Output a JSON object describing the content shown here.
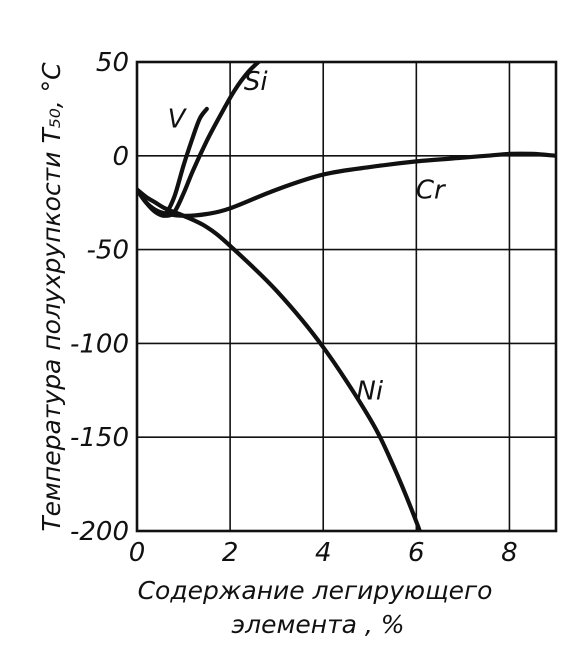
{
  "chart_data": {
    "type": "line",
    "xlabel_line1": "Содержание легирующего",
    "xlabel_line2": "элемента , %",
    "ylabel": "Температура полухрупкости T₅₀, °C",
    "xlim": [
      0,
      9
    ],
    "ylim": [
      -200,
      50
    ],
    "x_ticks": [
      0,
      2,
      4,
      6,
      8
    ],
    "x_tick_labels": [
      "0",
      "2",
      "4",
      "6",
      "8"
    ],
    "y_ticks": [
      50,
      0,
      -50,
      -100,
      -150,
      -200
    ],
    "y_tick_labels": [
      "50",
      "0",
      "-50",
      "-100",
      "-150",
      "-200"
    ],
    "grid": true,
    "series": [
      {
        "name": "V",
        "x": [
          0,
          0.2,
          0.4,
          0.6,
          0.8,
          1.0,
          1.2,
          1.35,
          1.5
        ],
        "y": [
          -18,
          -25,
          -30,
          -31,
          -22,
          -5,
          10,
          20,
          25
        ]
      },
      {
        "name": "Si",
        "x": [
          0,
          0.2,
          0.4,
          0.6,
          0.8,
          1.0,
          1.2,
          1.5,
          1.8,
          2.1,
          2.4,
          2.7
        ],
        "y": [
          -18,
          -25,
          -30,
          -32,
          -30,
          -20,
          -8,
          8,
          22,
          35,
          45,
          52
        ]
      },
      {
        "name": "Cr",
        "x": [
          0,
          0.2,
          0.5,
          1.0,
          1.5,
          2.0,
          3.0,
          4.0,
          5.0,
          6.0,
          7.0,
          7.5,
          8.0,
          8.5,
          9.0
        ],
        "y": [
          -18,
          -25,
          -30,
          -32,
          -31,
          -28,
          -18,
          -10,
          -6,
          -3,
          -1,
          0,
          1,
          1,
          0
        ]
      },
      {
        "name": "Ni",
        "x": [
          0,
          0.2,
          0.4,
          0.6,
          0.8,
          1.0,
          1.5,
          2.0,
          3.0,
          4.0,
          5.0,
          5.5,
          6.0,
          6.2
        ],
        "y": [
          -18,
          -22,
          -25,
          -28,
          -30,
          -32,
          -38,
          -48,
          -72,
          -102,
          -140,
          -165,
          -195,
          -210
        ]
      }
    ],
    "series_labels": [
      {
        "text": "V",
        "x": 0.85,
        "y": 20
      },
      {
        "text": "Si",
        "x": 2.55,
        "y": 40
      },
      {
        "text": "Cr",
        "x": 6.3,
        "y": -18
      },
      {
        "text": "Ni",
        "x": 5.0,
        "y": -125
      }
    ]
  }
}
